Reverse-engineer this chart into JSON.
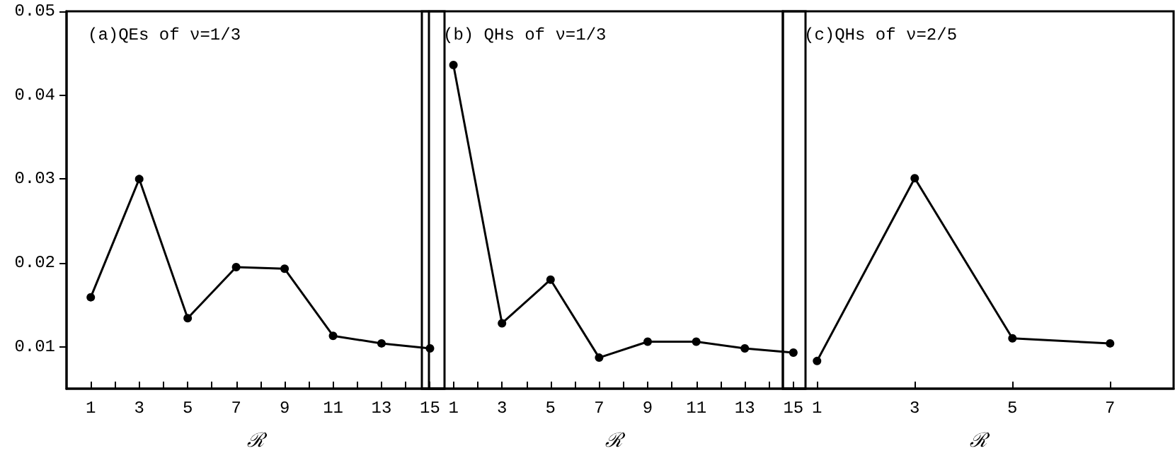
{
  "chart_data": [
    {
      "type": "line",
      "title": "(a)QEs of ν=1/3",
      "xlabel": "ℛ",
      "x": [
        1,
        3,
        5,
        7,
        9,
        11,
        13,
        15
      ],
      "xlim": [
        0,
        15.6
      ],
      "xticks": [
        1,
        {
          "value": 2,
          "label": null
        },
        3,
        {
          "value": 4,
          "label": null
        },
        5,
        {
          "value": 6,
          "label": null
        },
        7,
        {
          "value": 8,
          "label": null
        },
        9,
        {
          "value": 10,
          "label": null
        },
        11,
        {
          "value": 12,
          "label": null
        },
        13,
        {
          "value": 14,
          "label": null
        },
        15
      ],
      "ylim": [
        0.005,
        0.05
      ],
      "yticks": [
        0.01,
        0.02,
        0.03,
        0.04,
        0.05
      ],
      "grid": false,
      "marker": "circle",
      "line_style": "solid",
      "series": [
        {
          "color": "#000000",
          "values": [
            0.0159,
            0.03,
            0.0134,
            0.0195,
            0.0193,
            0.0113,
            0.0104,
            0.0098
          ]
        }
      ]
    },
    {
      "type": "line",
      "title": "(b) QHs of ν=1/3",
      "xlabel": "ℛ",
      "x": [
        1,
        3,
        5,
        7,
        9,
        11,
        13,
        15
      ],
      "xlim": [
        -0.3,
        15.5
      ],
      "xticks": [
        1,
        {
          "value": 2,
          "label": null
        },
        3,
        {
          "value": 4,
          "label": null
        },
        5,
        {
          "value": 6,
          "label": null
        },
        7,
        {
          "value": 8,
          "label": null
        },
        9,
        {
          "value": 10,
          "label": null
        },
        11,
        {
          "value": 12,
          "label": null
        },
        13,
        {
          "value": 14,
          "label": null
        },
        15
      ],
      "ylim": [
        0.005,
        0.05
      ],
      "yticks": [
        0.01,
        0.02,
        0.03,
        0.04,
        0.05
      ],
      "tick_labels": "x",
      "grid": false,
      "marker": "circle",
      "line_style": "solid",
      "series": [
        {
          "color": "#000000",
          "values": [
            0.0436,
            0.0128,
            0.018,
            0.0087,
            0.0106,
            0.0106,
            0.0098,
            0.0093
          ]
        }
      ]
    },
    {
      "type": "line",
      "title": "(c)QHs of ν=2/5",
      "xlabel": "ℛ",
      "x": [
        1,
        3,
        5,
        7
      ],
      "xlim": [
        0.3,
        8.3
      ],
      "xticks": [
        1,
        3,
        5,
        7
      ],
      "ylim": [
        0.005,
        0.05
      ],
      "yticks": [
        0.01,
        0.02,
        0.03,
        0.04,
        0.05
      ],
      "tick_labels": "x",
      "grid": false,
      "marker": "circle",
      "line_style": "solid",
      "series": [
        {
          "color": "#000000",
          "values": [
            0.0083,
            0.0301,
            0.011,
            0.0104
          ]
        }
      ]
    }
  ]
}
